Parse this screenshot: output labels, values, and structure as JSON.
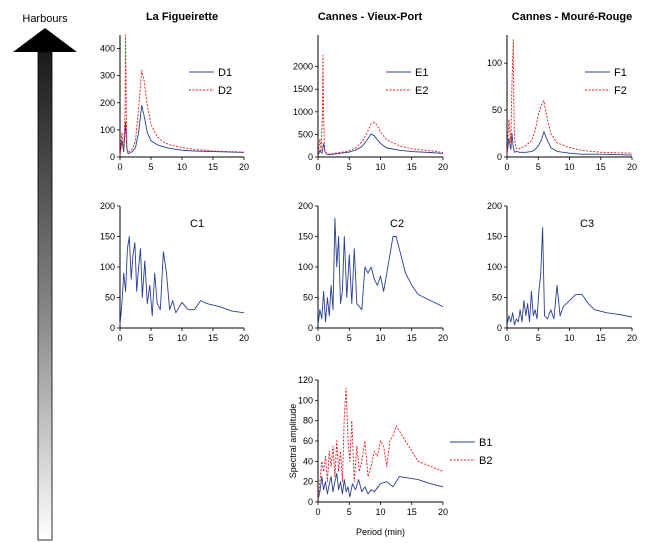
{
  "arrow_label": "Harbours",
  "colors": {
    "blue": "#2a3f94",
    "red": "#e8141c"
  },
  "chart_data": [
    {
      "id": "D",
      "type": "line",
      "title": "La Figueirette",
      "xlim": [
        0,
        20
      ],
      "ylim": [
        0,
        450
      ],
      "xticks": [
        "0",
        "5",
        "10",
        "15",
        "20"
      ],
      "yticks": [
        0,
        100,
        200,
        300,
        400
      ],
      "series": [
        {
          "name": "D1",
          "style": "solid",
          "color": "#2a3f94",
          "x": [
            0,
            0.3,
            0.6,
            0.9,
            1.1,
            1.3,
            1.6,
            2,
            2.5,
            3,
            3.5,
            3.9,
            4.4,
            5,
            6,
            7,
            8,
            10,
            12,
            15,
            20
          ],
          "y": [
            8,
            60,
            20,
            130,
            35,
            12,
            15,
            20,
            35,
            90,
            190,
            150,
            90,
            60,
            45,
            38,
            32,
            25,
            22,
            20,
            17
          ]
        },
        {
          "name": "D2",
          "style": "dashed",
          "color": "#e8141c",
          "x": [
            0,
            0.3,
            0.6,
            0.8,
            0.9,
            1.0,
            1.1,
            1.3,
            1.6,
            2,
            2.5,
            3,
            3.5,
            3.9,
            4.4,
            5,
            6,
            7,
            8,
            10,
            12,
            15,
            20
          ],
          "y": [
            5,
            90,
            20,
            160,
            450,
            200,
            30,
            18,
            22,
            30,
            60,
            180,
            320,
            280,
            190,
            120,
            75,
            55,
            45,
            35,
            28,
            22,
            18
          ]
        }
      ]
    },
    {
      "id": "E",
      "type": "line",
      "title": "Cannes - Vieux-Port",
      "xlim": [
        0,
        20
      ],
      "ylim": [
        0,
        2700
      ],
      "xticks": [
        "0",
        "5",
        "10",
        "15",
        "20"
      ],
      "yticks": [
        0,
        500,
        1000,
        1500,
        2000
      ],
      "series": [
        {
          "name": "E1",
          "style": "solid",
          "color": "#2a3f94",
          "x": [
            0,
            0.3,
            0.6,
            0.9,
            1.1,
            1.4,
            1.8,
            2.3,
            3,
            4,
            5,
            6,
            7,
            7.8,
            8.5,
            9,
            9.5,
            10,
            11,
            13,
            15,
            18,
            20
          ],
          "y": [
            20,
            150,
            80,
            300,
            120,
            60,
            50,
            60,
            70,
            90,
            110,
            150,
            230,
            370,
            510,
            470,
            380,
            300,
            200,
            150,
            120,
            100,
            80
          ]
        },
        {
          "name": "E2",
          "style": "dashed",
          "color": "#e8141c",
          "x": [
            0,
            0.3,
            0.5,
            0.7,
            0.8,
            0.9,
            1.0,
            1.1,
            1.3,
            1.6,
            2,
            3,
            4,
            5,
            6,
            7,
            7.8,
            8.5,
            9,
            9.5,
            10,
            11,
            13,
            15,
            18,
            20
          ],
          "y": [
            20,
            400,
            150,
            950,
            2250,
            900,
            300,
            150,
            80,
            60,
            70,
            90,
            110,
            140,
            200,
            330,
            520,
            730,
            770,
            700,
            550,
            380,
            250,
            180,
            140,
            100
          ]
        }
      ]
    },
    {
      "id": "F",
      "type": "line",
      "title": "Cannes - Mouré-Rouge",
      "xlim": [
        0,
        20
      ],
      "ylim": [
        0,
        130
      ],
      "xticks": [
        "0",
        "5",
        "10",
        "15",
        "20"
      ],
      "yticks": [
        0,
        50,
        100
      ],
      "series": [
        {
          "name": "F1",
          "style": "solid",
          "color": "#2a3f94",
          "x": [
            0,
            0.3,
            0.6,
            0.8,
            1.0,
            1.2,
            1.5,
            2,
            3,
            4,
            4.5,
            5,
            5.5,
            5.9,
            6.3,
            7,
            8,
            10,
            12,
            15,
            20
          ],
          "y": [
            2,
            20,
            8,
            25,
            10,
            5,
            6,
            5,
            5,
            6,
            8,
            12,
            18,
            27,
            20,
            10,
            6,
            4,
            3,
            3,
            2
          ]
        },
        {
          "name": "F2",
          "style": "dashed",
          "color": "#e8141c",
          "x": [
            0,
            0.3,
            0.6,
            0.8,
            1.0,
            1.1,
            1.2,
            1.4,
            1.7,
            2,
            3,
            4,
            4.5,
            5,
            5.5,
            5.9,
            6.3,
            7,
            8,
            10,
            12,
            15,
            20
          ],
          "y": [
            3,
            40,
            15,
            80,
            125,
            50,
            20,
            10,
            8,
            9,
            12,
            18,
            28,
            45,
            55,
            60,
            45,
            25,
            15,
            10,
            7,
            5,
            4
          ]
        }
      ]
    },
    {
      "id": "C1",
      "type": "line",
      "xlim": [
        0,
        20
      ],
      "ylim": [
        0,
        200
      ],
      "xticks": [
        "0",
        "5",
        "10",
        "15",
        "20"
      ],
      "yticks": [
        0,
        50,
        100,
        150,
        200
      ],
      "annotation": "C1",
      "series": [
        {
          "name": "C1",
          "style": "solid",
          "color": "#2a3f94",
          "x": [
            0,
            0.3,
            0.6,
            0.9,
            1.2,
            1.5,
            1.8,
            2.1,
            2.4,
            2.7,
            3.0,
            3.3,
            3.6,
            4.0,
            4.4,
            4.8,
            5.2,
            5.6,
            6.0,
            6.5,
            7.0,
            7.5,
            8,
            8.5,
            9,
            10,
            11,
            12,
            13,
            14,
            16,
            18,
            20
          ],
          "y": [
            5,
            40,
            90,
            60,
            130,
            150,
            80,
            120,
            140,
            60,
            100,
            130,
            50,
            110,
            40,
            70,
            20,
            90,
            40,
            30,
            125,
            90,
            30,
            45,
            25,
            42,
            30,
            30,
            45,
            40,
            35,
            28,
            25
          ]
        }
      ]
    },
    {
      "id": "C2",
      "type": "line",
      "xlim": [
        0,
        20
      ],
      "ylim": [
        0,
        200
      ],
      "xticks": [
        "0",
        "5",
        "10",
        "15",
        "20"
      ],
      "yticks": [
        0,
        50,
        100,
        150,
        200
      ],
      "annotation": "C2",
      "series": [
        {
          "name": "C2",
          "style": "solid",
          "color": "#2a3f94",
          "x": [
            0,
            0.3,
            0.6,
            0.9,
            1.2,
            1.5,
            1.8,
            2.1,
            2.4,
            2.7,
            3.0,
            3.3,
            3.6,
            3.9,
            4.2,
            4.6,
            5.0,
            5.4,
            5.8,
            6.2,
            7,
            7.5,
            8,
            8.5,
            9,
            9.5,
            10,
            10.5,
            11,
            11.5,
            12,
            12.5,
            13,
            14,
            15,
            16,
            17,
            18,
            20
          ],
          "y": [
            5,
            30,
            15,
            60,
            10,
            50,
            20,
            70,
            30,
            180,
            100,
            150,
            40,
            60,
            150,
            50,
            120,
            40,
            130,
            40,
            30,
            100,
            90,
            100,
            80,
            70,
            85,
            60,
            90,
            120,
            150,
            150,
            130,
            90,
            70,
            55,
            50,
            45,
            35
          ]
        }
      ]
    },
    {
      "id": "C3",
      "type": "line",
      "xlim": [
        0,
        20
      ],
      "ylim": [
        0,
        200
      ],
      "xticks": [
        "0",
        "5",
        "10",
        "15",
        "20"
      ],
      "yticks": [
        0,
        50,
        100,
        150,
        200
      ],
      "annotation": "C3",
      "series": [
        {
          "name": "C3",
          "style": "solid",
          "color": "#2a3f94",
          "x": [
            0,
            0.3,
            0.6,
            0.9,
            1.2,
            1.5,
            1.8,
            2.1,
            2.4,
            2.7,
            3.0,
            3.3,
            3.6,
            3.9,
            4.2,
            4.5,
            4.8,
            5.1,
            5.4,
            5.7,
            6.0,
            6.5,
            7,
            7.5,
            8,
            8.5,
            9,
            10,
            11,
            12,
            13,
            14,
            16,
            18,
            20
          ],
          "y": [
            5,
            20,
            10,
            25,
            5,
            15,
            10,
            30,
            10,
            45,
            20,
            40,
            10,
            60,
            20,
            30,
            15,
            60,
            90,
            165,
            20,
            15,
            30,
            15,
            70,
            20,
            35,
            45,
            55,
            55,
            40,
            30,
            25,
            22,
            18
          ]
        }
      ]
    },
    {
      "id": "B",
      "type": "line",
      "xlim": [
        0,
        20
      ],
      "ylim": [
        0,
        120
      ],
      "xticks": [
        "0",
        "5",
        "10",
        "15",
        "20"
      ],
      "yticks": [
        0,
        20,
        40,
        60,
        80,
        100,
        120
      ],
      "xlabel": "Period (min)",
      "ylabel": "Spectral amplitude",
      "series": [
        {
          "name": "B1",
          "style": "solid",
          "color": "#2a3f94",
          "x": [
            0,
            0.3,
            0.6,
            0.9,
            1.2,
            1.5,
            1.8,
            2.1,
            2.4,
            2.7,
            3.0,
            3.3,
            3.6,
            3.9,
            4.2,
            4.5,
            4.8,
            5.1,
            5.5,
            6,
            6.5,
            7,
            7.5,
            8,
            8.5,
            9,
            10,
            11,
            12,
            13,
            14,
            16,
            18,
            20
          ],
          "y": [
            2,
            10,
            25,
            12,
            20,
            8,
            18,
            25,
            10,
            20,
            28,
            12,
            20,
            8,
            22,
            10,
            15,
            5,
            18,
            12,
            22,
            10,
            15,
            8,
            12,
            10,
            18,
            20,
            15,
            25,
            24,
            22,
            18,
            15
          ]
        },
        {
          "name": "B2",
          "style": "dashed",
          "color": "#e8141c",
          "x": [
            0,
            0.3,
            0.6,
            0.9,
            1.2,
            1.5,
            1.8,
            2.1,
            2.4,
            2.7,
            3.0,
            3.3,
            3.6,
            3.9,
            4.2,
            4.5,
            4.8,
            5.1,
            5.4,
            5.8,
            6.2,
            6.6,
            7,
            7.5,
            8,
            8.5,
            9,
            9.5,
            10,
            10.5,
            11,
            11.5,
            12,
            12.5,
            13,
            14,
            15,
            16,
            18,
            20
          ],
          "y": [
            3,
            20,
            40,
            30,
            45,
            20,
            50,
            35,
            55,
            25,
            60,
            30,
            50,
            20,
            85,
            112,
            60,
            40,
            80,
            20,
            55,
            30,
            40,
            60,
            25,
            35,
            50,
            45,
            60,
            55,
            35,
            60,
            65,
            75,
            70,
            60,
            50,
            40,
            35,
            30
          ]
        }
      ]
    }
  ]
}
